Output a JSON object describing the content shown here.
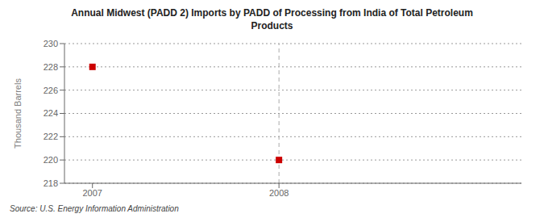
{
  "chart_data": {
    "type": "scatter",
    "title": "Annual Midwest (PADD 2) Imports by PADD of Processing from India of Total Petroleum\nProducts",
    "ylabel": "Thousand Barrels",
    "source": "Source: U.S. Energy Information Administration",
    "x": [
      2007,
      2008
    ],
    "values": [
      228,
      220
    ],
    "color": "#cc0000",
    "marker": "square",
    "xlim": [
      2006.85,
      2009.3
    ],
    "xticks": [
      2007,
      2008
    ],
    "ylim": [
      218,
      230
    ],
    "yticks": [
      218,
      220,
      222,
      224,
      226,
      228,
      230
    ],
    "grid": true,
    "vline": 2008
  }
}
